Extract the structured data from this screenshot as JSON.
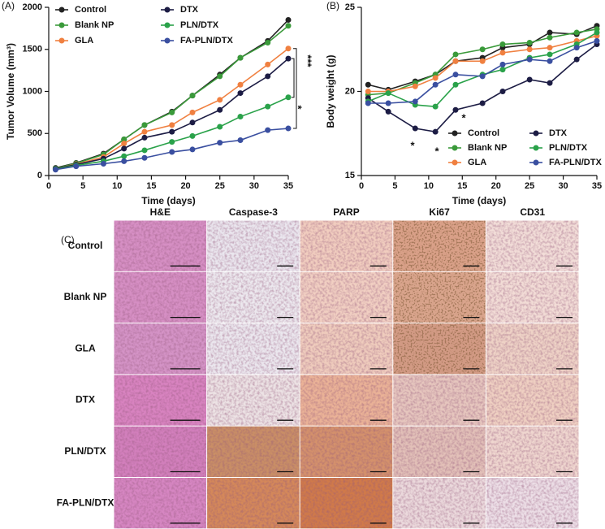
{
  "chart_data": [
    {
      "type": "line",
      "panel": "(A)",
      "y_label": "Tumor Volume (mm³)",
      "x_label": "Time (days)",
      "x": [
        1,
        4,
        8,
        11,
        14,
        18,
        21,
        25,
        28,
        32,
        35
      ],
      "xlim": [
        0,
        35
      ],
      "xticks": [
        0,
        5,
        10,
        15,
        20,
        25,
        30,
        35
      ],
      "ylim": [
        0,
        2000
      ],
      "yticks": [
        0,
        500,
        1000,
        1500,
        2000
      ],
      "legend": "upper left",
      "series": [
        {
          "name": "Control",
          "color": "#222222",
          "values": [
            90,
            150,
            260,
            430,
            600,
            760,
            950,
            1200,
            1400,
            1600,
            1850
          ]
        },
        {
          "name": "Blank NP",
          "color": "#3a9a3a",
          "values": [
            85,
            145,
            250,
            430,
            600,
            750,
            950,
            1180,
            1400,
            1580,
            1780
          ]
        },
        {
          "name": "GLA",
          "color": "#f08040",
          "values": [
            80,
            135,
            220,
            380,
            520,
            600,
            750,
            900,
            1080,
            1320,
            1510
          ]
        },
        {
          "name": "DTX",
          "color": "#1c1c44",
          "values": [
            80,
            130,
            200,
            320,
            450,
            520,
            630,
            780,
            980,
            1180,
            1390
          ]
        },
        {
          "name": "PLN/DTX",
          "color": "#2aa24a",
          "values": [
            75,
            120,
            170,
            230,
            300,
            400,
            470,
            580,
            700,
            820,
            930
          ]
        },
        {
          "name": "FA-PLN/DTX",
          "color": "#3a4fa0",
          "values": [
            70,
            110,
            140,
            170,
            210,
            280,
            310,
            390,
            420,
            540,
            560
          ]
        }
      ],
      "annotations": [
        "***",
        "*"
      ]
    },
    {
      "type": "line",
      "panel": "(B)",
      "y_label": "Body weight (g)",
      "x_label": "Time (days)",
      "x": [
        1,
        4,
        8,
        11,
        14,
        18,
        21,
        25,
        28,
        32,
        35
      ],
      "xlim": [
        0,
        35
      ],
      "xticks": [
        0,
        5,
        10,
        15,
        20,
        25,
        30,
        35
      ],
      "ylim": [
        15,
        25
      ],
      "yticks": [
        15,
        20,
        25
      ],
      "legend": "lower right",
      "series": [
        {
          "name": "Control",
          "color": "#222222",
          "values": [
            20.4,
            20.1,
            20.6,
            21.0,
            21.8,
            22.0,
            22.6,
            22.8,
            23.5,
            23.4,
            23.9
          ]
        },
        {
          "name": "Blank NP",
          "color": "#3a9a3a",
          "values": [
            19.8,
            19.9,
            20.5,
            21.0,
            22.2,
            22.5,
            22.8,
            22.9,
            23.2,
            23.5,
            23.7
          ]
        },
        {
          "name": "GLA",
          "color": "#f08040",
          "values": [
            20.0,
            20.0,
            20.3,
            20.8,
            21.8,
            21.8,
            22.3,
            22.5,
            22.6,
            23.0,
            23.3
          ]
        },
        {
          "name": "DTX",
          "color": "#1c1c44",
          "values": [
            19.6,
            18.8,
            17.8,
            17.6,
            18.9,
            19.3,
            20.0,
            20.7,
            20.5,
            21.9,
            22.8
          ]
        },
        {
          "name": "PLN/DTX",
          "color": "#2aa24a",
          "values": [
            19.4,
            19.9,
            19.2,
            19.1,
            20.4,
            21.0,
            21.3,
            22.0,
            22.2,
            22.8,
            23.5
          ]
        },
        {
          "name": "FA-PLN/DTX",
          "color": "#3a4fa0",
          "values": [
            19.3,
            19.3,
            19.4,
            20.4,
            21.0,
            20.9,
            21.6,
            21.9,
            21.8,
            22.6,
            23.0
          ]
        }
      ],
      "annotations": [
        "*",
        "*",
        "*"
      ]
    }
  ],
  "panel_c": {
    "label": "(C)",
    "columns": [
      "H&E",
      "Caspase-3",
      "PARP",
      "Ki67",
      "CD31"
    ],
    "rows": [
      "Control",
      "Blank NP",
      "GLA",
      "DTX",
      "PLN/DTX",
      "FA-PLN/DTX"
    ]
  }
}
